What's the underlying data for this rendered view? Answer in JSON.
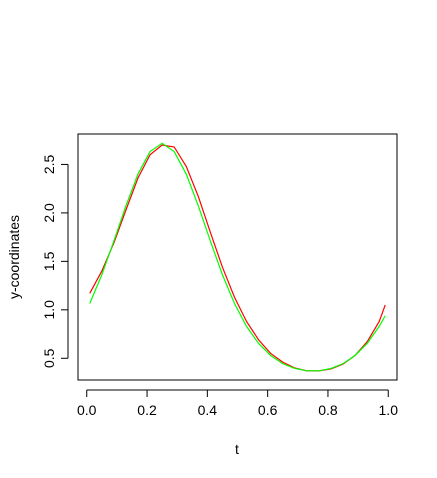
{
  "chart_data": {
    "type": "line",
    "x_label": "t",
    "y_label": "y-coordinates",
    "x": [
      0.01,
      0.05,
      0.09,
      0.13,
      0.17,
      0.21,
      0.25,
      0.29,
      0.33,
      0.37,
      0.41,
      0.45,
      0.49,
      0.53,
      0.57,
      0.61,
      0.65,
      0.69,
      0.73,
      0.77,
      0.81,
      0.85,
      0.89,
      0.93,
      0.97,
      0.99
    ],
    "series": [
      {
        "color": "#ff0000",
        "values": [
          1.17,
          1.4,
          1.69,
          2.03,
          2.36,
          2.6,
          2.7,
          2.68,
          2.48,
          2.17,
          1.8,
          1.44,
          1.13,
          0.88,
          0.69,
          0.55,
          0.46,
          0.4,
          0.37,
          0.37,
          0.39,
          0.44,
          0.53,
          0.67,
          0.88,
          1.05
        ]
      },
      {
        "color": "#00ff00",
        "values": [
          1.065,
          1.362,
          1.709,
          2.073,
          2.401,
          2.633,
          2.718,
          2.633,
          2.401,
          2.073,
          1.709,
          1.362,
          1.065,
          0.829,
          0.653,
          0.529,
          0.445,
          0.395,
          0.371,
          0.371,
          0.395,
          0.445,
          0.529,
          0.653,
          0.829,
          0.939
        ]
      }
    ],
    "xlim": [
      -0.029,
      1.029
    ],
    "ylim": [
      0.276,
      2.814
    ],
    "xticks": [
      {
        "value": 0,
        "label": "0.0"
      },
      0.2,
      0.4,
      0.6,
      0.8,
      {
        "value": 1,
        "label": "1.0"
      }
    ],
    "yticks": [
      0.5,
      {
        "value": 1,
        "label": "1.0"
      },
      1.5,
      {
        "value": 2,
        "label": "2.0"
      },
      2.5
    ]
  }
}
